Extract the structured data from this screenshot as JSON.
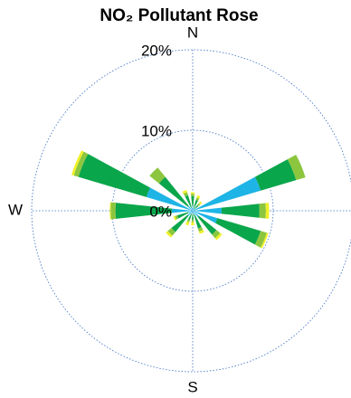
{
  "chart_data": {
    "type": "rose",
    "title": "NO₂ Pollutant Rose",
    "directions": [
      0,
      22.5,
      45,
      67.5,
      90,
      112.5,
      135,
      157.5,
      180,
      202.5,
      225,
      247.5,
      270,
      292.5,
      315,
      337.5
    ],
    "series": [
      {
        "color": "#1eb4e6",
        "values": [
          0.6,
          0.4,
          0.3,
          8.8,
          3.6,
          3.2,
          1.0,
          0.5,
          0.3,
          0.4,
          0.8,
          0.6,
          2.6,
          6.0,
          0.8,
          0.4
        ]
      },
      {
        "color": "#0aa64b",
        "values": [
          1.2,
          1.0,
          0.6,
          4.6,
          4.7,
          5.6,
          2.8,
          1.8,
          0.8,
          0.8,
          2.6,
          1.4,
          7.0,
          8.8,
          4.6,
          1.6
        ]
      },
      {
        "color": "#8cc63f",
        "values": [
          0.3,
          0.3,
          0.3,
          1.2,
          0.8,
          0.8,
          0.6,
          0.4,
          0.3,
          0.3,
          0.6,
          0.3,
          0.6,
          0.6,
          1.5,
          0.4
        ]
      },
      {
        "color": "#f0f028",
        "values": [
          0.2,
          0.3,
          0.3,
          0.0,
          0.4,
          0.2,
          0.3,
          0.3,
          0.4,
          0.4,
          0.3,
          0.2,
          0.1,
          0.3,
          0.0,
          0.3
        ]
      }
    ],
    "rlim": [
      0,
      20
    ],
    "rticks": [
      {
        "value": 0,
        "label": "0%"
      },
      {
        "value": 10,
        "label": "10%"
      },
      {
        "value": 20,
        "label": "20%"
      }
    ],
    "thetaticks": [
      {
        "value": 0,
        "label": "N"
      },
      {
        "value": 180,
        "label": "S"
      },
      {
        "value": 270,
        "label": "W"
      }
    ],
    "grid": true
  }
}
